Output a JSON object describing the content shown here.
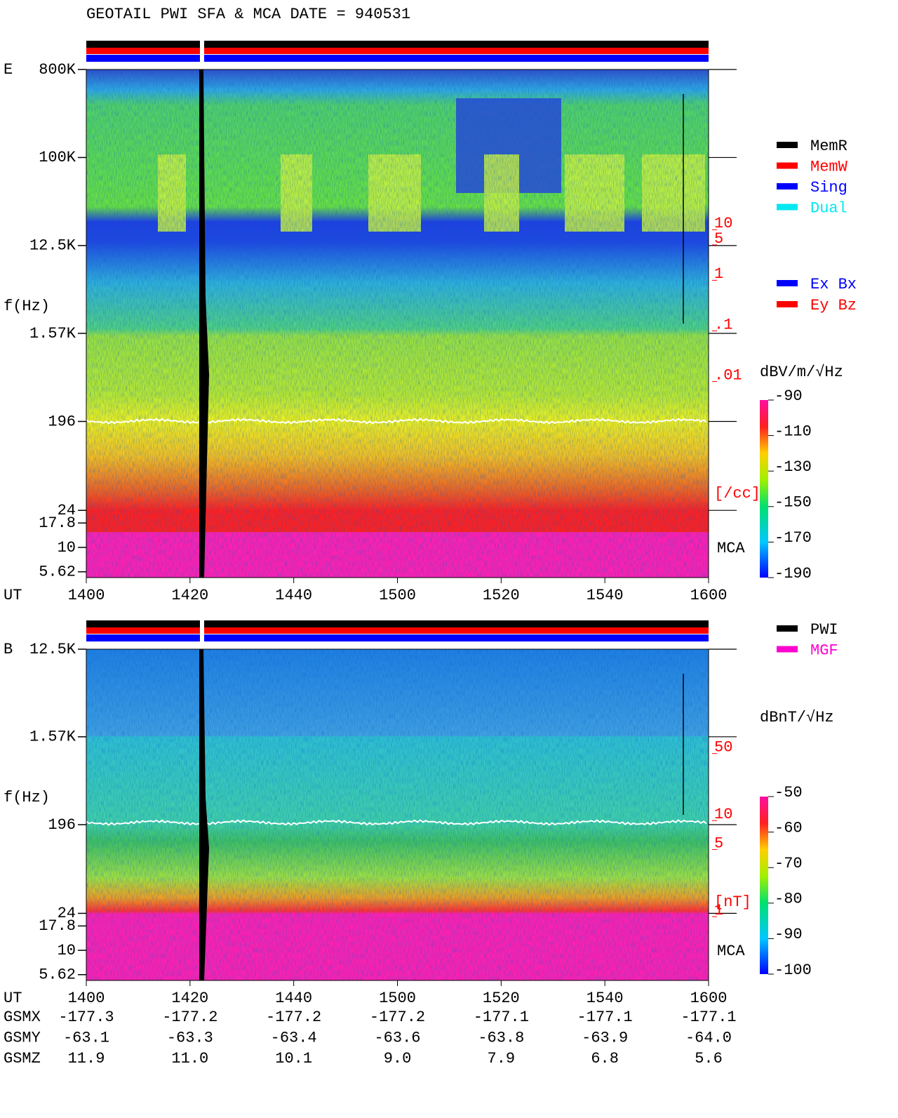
{
  "title": "GEOTAIL  PWI SFA & MCA   DATE = 940531",
  "chart_data": [
    {
      "type": "spectrogram",
      "panel_label": "E",
      "y_label": "f(Hz)",
      "x_label": "UT",
      "x": [
        "1400",
        "1420",
        "1440",
        "1500",
        "1520",
        "1540",
        "1600"
      ],
      "ylim": [
        4.9,
        800000
      ],
      "log_y": true,
      "yticks": [
        {
          "value": 800000,
          "label": "800K"
        },
        {
          "value": 100000,
          "label": "100K"
        },
        {
          "value": 12500,
          "label": "12.5K"
        },
        {
          "value": 1570,
          "label": "1.57K"
        },
        196,
        24,
        17.8,
        10,
        5.62
      ],
      "y2lim": [
        1e-06,
        11000
      ],
      "y2ticks": [
        10,
        5,
        1,
        {
          "value": 0.1,
          "label": ".1"
        },
        {
          "value": 0.01,
          "label": ".01"
        }
      ],
      "y2_label": "[/cc]",
      "y2_color": "#ff0000",
      "band_label": "MCA",
      "legend": [
        {
          "name": "MemR",
          "color": "#000000"
        },
        {
          "name": "MemW",
          "color": "#ff0000"
        },
        {
          "name": "Sing",
          "color": "#0000ff"
        },
        {
          "name": "Dual",
          "color": "#00e8f0"
        }
      ],
      "legend2": [
        {
          "name": "Ex Bx",
          "color": "#0000ff"
        },
        {
          "name": "Ey Bz",
          "color": "#ff0000"
        }
      ],
      "colorbar": {
        "label": "dBV/m/√Hz",
        "lim": [
          -190,
          -90
        ],
        "ticks": [
          -90,
          -110,
          -130,
          -150,
          -170,
          -190
        ]
      }
    },
    {
      "type": "spectrogram",
      "panel_label": "B",
      "y_label": "f(Hz)",
      "x_label": "UT",
      "x": [
        "1400",
        "1420",
        "1440",
        "1500",
        "1520",
        "1540",
        "1600"
      ],
      "ylim": [
        4.9,
        12500
      ],
      "log_y": true,
      "yticks": [
        {
          "value": 12500,
          "label": "12.5K"
        },
        {
          "value": 1570,
          "label": "1.57K"
        },
        196,
        24,
        17.8,
        10,
        5.62
      ],
      "y2lim": [
        0.186,
        525
      ],
      "y2ticks": [
        50,
        10,
        5,
        1
      ],
      "y2_label": "[nT]",
      "y2_color": "#ff0000",
      "band_label": "MCA",
      "legend": [
        {
          "name": "PWI",
          "color": "#000000"
        },
        {
          "name": "MGF",
          "color": "#ff00d0"
        }
      ],
      "colorbar": {
        "label": "dBnT/√Hz",
        "lim": [
          -100,
          -50
        ],
        "ticks": [
          -50,
          -60,
          -70,
          -80,
          -90,
          -100
        ]
      }
    }
  ],
  "orbit": {
    "rows": [
      {
        "name": "GSMX",
        "values": [
          "-177.3",
          "-177.2",
          "-177.2",
          "-177.2",
          "-177.1",
          "-177.1",
          "-177.1"
        ]
      },
      {
        "name": "GSMY",
        "values": [
          "-63.1",
          "-63.3",
          "-63.4",
          "-63.6",
          "-63.8",
          "-63.9",
          "-64.0"
        ]
      },
      {
        "name": "GSMZ",
        "values": [
          "11.9",
          "11.0",
          "10.1",
          "9.0",
          "7.9",
          "6.8",
          "5.6"
        ]
      }
    ]
  }
}
